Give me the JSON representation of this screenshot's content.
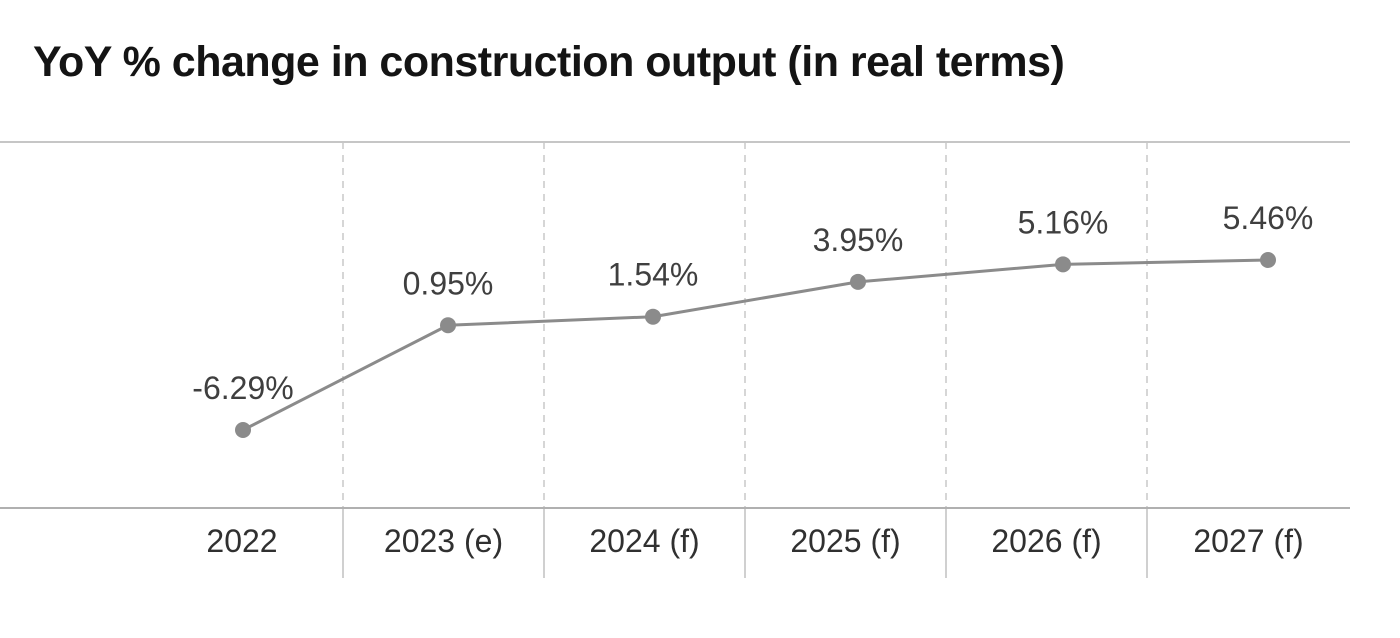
{
  "chart_data": {
    "type": "line",
    "title": "YoY % change in construction output (in real terms)",
    "categories": [
      "2022",
      "2023 (e)",
      "2024 (f)",
      "2025 (f)",
      "2026 (f)",
      "2027 (f)"
    ],
    "values": [
      -6.29,
      0.95,
      1.54,
      3.95,
      5.16,
      5.46
    ],
    "data_labels": [
      "-6.29%",
      "0.95%",
      "1.54%",
      "3.95%",
      "5.16%",
      "5.46%"
    ],
    "xlabel": "",
    "ylabel": "",
    "ylim": [
      -11.7,
      13.6
    ],
    "grid": "vertical dashed gridlines at category boundaries",
    "legend_position": "none",
    "marker": "circle",
    "data_labels_position": "above points"
  },
  "colors": {
    "line": "#8b8b8b",
    "point": "#8b8b8b",
    "gridline": "#d6d6d6",
    "tick": "#d0d0d0",
    "axis": "#b0b0b0",
    "plot_border": "#c6c6c6",
    "title_text": "#141414",
    "data_label_text": "#3f3f3f",
    "axis_label_text": "#303030",
    "background": "#ffffff"
  }
}
